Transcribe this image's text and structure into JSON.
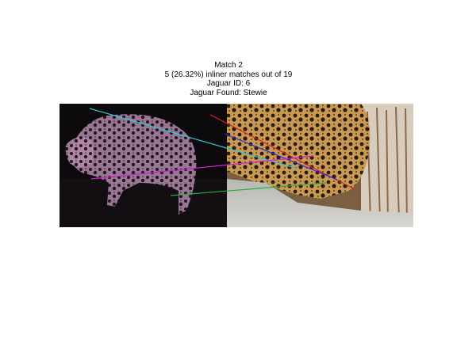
{
  "title": {
    "line1": "Match 2",
    "line2": "5 (26.32%) inliner matches out of 19",
    "line3": "Jaguar ID: 6",
    "line4": "Jaguar Found: Stewie"
  },
  "match_lines": [
    {
      "name": "match-line-cyan",
      "color": "#33c8d8"
    },
    {
      "name": "match-line-red",
      "color": "#e02020"
    },
    {
      "name": "match-line-blue",
      "color": "#2a2ae0"
    },
    {
      "name": "match-line-magenta",
      "color": "#d020d0"
    },
    {
      "name": "match-line-green",
      "color": "#20b040"
    }
  ]
}
